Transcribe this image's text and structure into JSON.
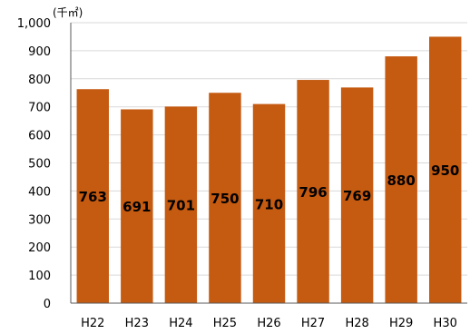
{
  "chart_data": {
    "type": "bar",
    "unit_label": "(千㎡)",
    "categories": [
      "H22",
      "H23",
      "H24",
      "H25",
      "H26",
      "H27",
      "H28",
      "H29",
      "H30"
    ],
    "values": [
      763,
      691,
      701,
      750,
      710,
      796,
      769,
      880,
      950
    ],
    "data_labels": [
      "763",
      "691",
      "701",
      "750",
      "710",
      "796",
      "769",
      "880",
      "950"
    ],
    "y_ticks": [
      "0",
      "100",
      "200",
      "300",
      "400",
      "500",
      "600",
      "700",
      "800",
      "900",
      "1,000"
    ],
    "ylim": [
      0,
      1000
    ],
    "grid": true,
    "legend": "none",
    "bar_color": "#C55A11",
    "grid_color": "#D9D9D9",
    "axis_color": "#595959"
  }
}
